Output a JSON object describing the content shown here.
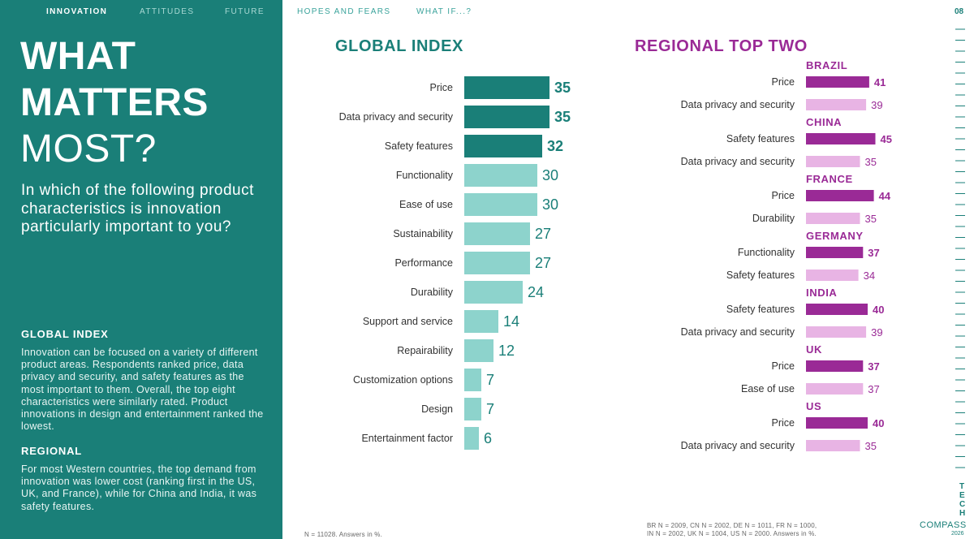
{
  "nav": {
    "items": [
      "INNOVATION",
      "ATTITUDES",
      "FUTURE",
      "HOPES AND FEARS",
      "WHAT IF...?"
    ],
    "page_number": "08"
  },
  "sidebar": {
    "title_lines": [
      "WHAT",
      "MATTERS",
      "MOST?"
    ],
    "question": "In which of the following product characteristics is innovation particularly important to you?",
    "global_heading": "GLOBAL INDEX",
    "global_text": "Innovation can be focused on a variety of different product areas. Respondents ranked price, data privacy and security, and safety features as the most important to them. Overall, the top eight characteristics were similarly rated. Product innovations in design and entertainment ranked the lowest.",
    "regional_heading": "REGIONAL",
    "regional_text": "For most Western countries, the top demand from innovation was lower cost (ranking first in the US, UK, and France), while for China and India, it was safety features."
  },
  "colors": {
    "teal_dark": "#1a7f78",
    "teal_light": "#8dd3cc",
    "purple_dark": "#9a2a96",
    "purple_light": "#e8b4e4"
  },
  "chart_data": [
    {
      "type": "bar",
      "orientation": "horizontal",
      "title": "GLOBAL INDEX",
      "categories": [
        "Price",
        "Data privacy and security",
        "Safety features",
        "Functionality",
        "Ease of use",
        "Sustainability",
        "Performance",
        "Durability",
        "Support and service",
        "Repairability",
        "Customization options",
        "Design",
        "Entertainment factor"
      ],
      "values": [
        35,
        35,
        32,
        30,
        30,
        27,
        27,
        24,
        14,
        12,
        7,
        7,
        6
      ],
      "highlight_top": 3,
      "footnote": "N = 11028. Answers in %."
    },
    {
      "type": "bar",
      "orientation": "horizontal",
      "title": "REGIONAL TOP TWO",
      "groups": [
        {
          "region": "BRAZIL",
          "items": [
            {
              "label": "Price",
              "value": 41
            },
            {
              "label": "Data privacy and security",
              "value": 39
            }
          ]
        },
        {
          "region": "CHINA",
          "items": [
            {
              "label": "Safety features",
              "value": 45
            },
            {
              "label": "Data privacy and security",
              "value": 35
            }
          ]
        },
        {
          "region": "FRANCE",
          "items": [
            {
              "label": "Price",
              "value": 44
            },
            {
              "label": "Durability",
              "value": 35
            }
          ]
        },
        {
          "region": "GERMANY",
          "items": [
            {
              "label": "Functionality",
              "value": 37
            },
            {
              "label": "Safety features",
              "value": 34
            }
          ]
        },
        {
          "region": "INDIA",
          "items": [
            {
              "label": "Safety features",
              "value": 40
            },
            {
              "label": "Data privacy and security",
              "value": 39
            }
          ]
        },
        {
          "region": "UK",
          "items": [
            {
              "label": "Price",
              "value": 37
            },
            {
              "label": "Ease of use",
              "value": 37
            }
          ]
        },
        {
          "region": "US",
          "items": [
            {
              "label": "Price",
              "value": 40
            },
            {
              "label": "Data privacy and security",
              "value": 35
            }
          ]
        }
      ],
      "footnote_lines": [
        "BR N = 2009, CN N = 2002, DE N = 1011, FR N = 1000,",
        "IN N = 2002, UK N = 1004, US N = 2000. Answers in %."
      ]
    }
  ],
  "brand": {
    "letters": [
      "T",
      "E",
      "C",
      "H"
    ],
    "word": "COMPASS",
    "year": "2026"
  }
}
